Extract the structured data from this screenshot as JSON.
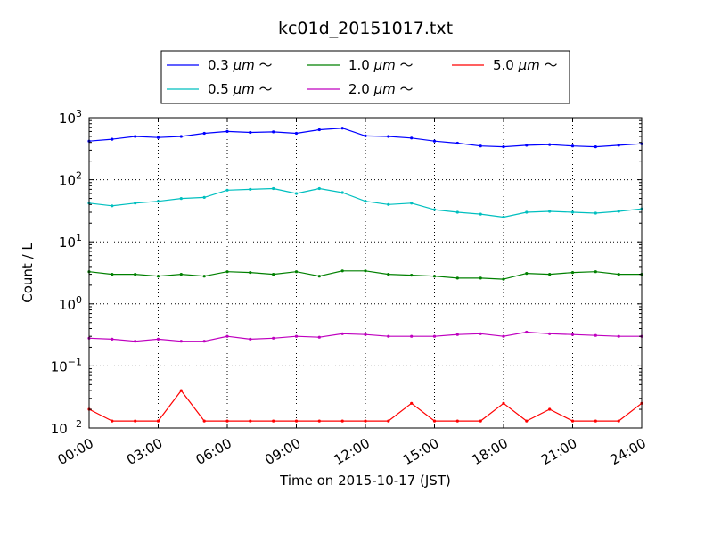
{
  "chart_data": {
    "type": "line",
    "title": "kc01d_20151017.txt",
    "xlabel": "Time on 2015-10-17 (JST)",
    "ylabel": "Count / L",
    "yscale": "log",
    "ylim": [
      0.01,
      1000
    ],
    "xlim_hours": [
      0,
      24
    ],
    "x_tick_labels": [
      "00:00",
      "03:00",
      "06:00",
      "09:00",
      "12:00",
      "15:00",
      "18:00",
      "21:00",
      "24:00"
    ],
    "x_tick_hours": [
      0,
      3,
      6,
      9,
      12,
      15,
      18,
      21,
      24
    ],
    "y_tick_exponents": [
      -2,
      -1,
      0,
      1,
      2,
      3
    ],
    "grid": true,
    "legend_placement": "top-center",
    "x_hours": [
      0,
      1,
      2,
      3,
      4,
      5,
      6,
      7,
      8,
      9,
      10,
      11,
      12,
      13,
      14,
      15,
      16,
      17,
      18,
      19,
      20,
      21,
      22,
      23,
      24
    ],
    "series": [
      {
        "name": "0.3 μm ～",
        "legend_main": "0.3 ",
        "legend_unit": "μm",
        "legend_tail": " ～",
        "color": "#0000ff",
        "values": [
          420,
          450,
          500,
          480,
          500,
          560,
          600,
          580,
          590,
          560,
          640,
          680,
          510,
          500,
          470,
          420,
          390,
          350,
          340,
          360,
          370,
          350,
          340,
          360,
          380
        ]
      },
      {
        "name": "0.5 μm ～",
        "legend_main": "0.5 ",
        "legend_unit": "μm",
        "legend_tail": " ～",
        "color": "#00bfbf",
        "values": [
          42,
          38,
          42,
          45,
          50,
          52,
          68,
          70,
          72,
          60,
          72,
          62,
          45,
          40,
          42,
          33,
          30,
          28,
          25,
          30,
          31,
          30,
          29,
          31,
          34
        ]
      },
      {
        "name": "1.0 μm ～",
        "legend_main": "1.0 ",
        "legend_unit": "μm",
        "legend_tail": " ～",
        "color": "#008000",
        "values": [
          3.3,
          3.0,
          3.0,
          2.8,
          3.0,
          2.8,
          3.3,
          3.2,
          3.0,
          3.3,
          2.8,
          3.4,
          3.4,
          3.0,
          2.9,
          2.8,
          2.6,
          2.6,
          2.5,
          3.1,
          3.0,
          3.2,
          3.3,
          3.0,
          3.0
        ]
      },
      {
        "name": "2.0 μm ～",
        "legend_main": "2.0 ",
        "legend_unit": "μm",
        "legend_tail": " ～",
        "color": "#bf00bf",
        "values": [
          0.28,
          0.27,
          0.25,
          0.27,
          0.25,
          0.25,
          0.3,
          0.27,
          0.28,
          0.3,
          0.29,
          0.33,
          0.32,
          0.3,
          0.3,
          0.3,
          0.32,
          0.33,
          0.3,
          0.35,
          0.33,
          0.32,
          0.31,
          0.3,
          0.3
        ]
      },
      {
        "name": "5.0 μm ～",
        "legend_main": "5.0 ",
        "legend_unit": "μm",
        "legend_tail": " ～",
        "color": "#ff0000",
        "values": [
          0.02,
          0.013,
          0.013,
          0.013,
          0.04,
          0.013,
          0.013,
          0.013,
          0.013,
          0.013,
          0.013,
          0.013,
          0.013,
          0.013,
          0.025,
          0.013,
          0.013,
          0.013,
          0.025,
          0.013,
          0.02,
          0.013,
          0.013,
          0.013,
          0.025
        ]
      }
    ]
  }
}
